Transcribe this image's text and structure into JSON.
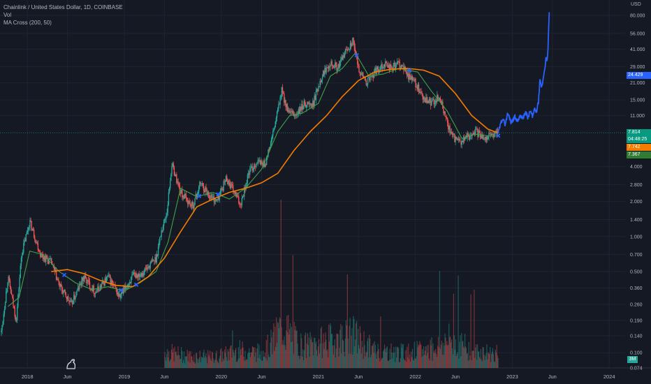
{
  "header": {
    "title": "Chainlink / United States Dollar, 1D, COINBASE",
    "vol_label": "Vol",
    "ma_label": "MA Cross (200, 50)"
  },
  "price_axis": {
    "currency": "USD",
    "ticks": [
      "80.000",
      "56.000",
      "41.000",
      "29.000",
      "21.000",
      "15.000",
      "11.000",
      "4.000",
      "2.800",
      "2.000",
      "1.400",
      "1.000",
      "0.700",
      "0.500",
      "0.360",
      "0.260",
      "0.190",
      "0.140",
      "0.100",
      "0.074"
    ],
    "tick_values": [
      80,
      56,
      41,
      29,
      21,
      15,
      11,
      4,
      2.8,
      2.0,
      1.4,
      1.0,
      0.7,
      0.5,
      0.36,
      0.26,
      0.19,
      0.14,
      0.1,
      0.074
    ]
  },
  "badges": {
    "projection": {
      "text": "24.429",
      "color": "#2962ff"
    },
    "last_price": {
      "text": "7.814",
      "color": "#089981"
    },
    "countdown": {
      "text": "04:48:25",
      "color": "#089981"
    },
    "ma200": {
      "text": "7.742",
      "color": "#f57c00"
    },
    "ma50": {
      "text": "7.367",
      "color": "#2e7d32"
    },
    "volume": {
      "text": "3M",
      "color": "#26a69a"
    }
  },
  "time_axis": {
    "labels": [
      "2018",
      "Jun",
      "2019",
      "Jun",
      "2020",
      "Jun",
      "2021",
      "Jun",
      "2022",
      "Jun",
      "2023",
      "Jun",
      "2024"
    ]
  },
  "chart_data": {
    "type": "line",
    "title": "Chainlink / United States Dollar, 1D, COINBASE",
    "yscale": "log",
    "ylim": [
      0.074,
      80
    ],
    "xlim": [
      "2017-09-20",
      "2024-03-01"
    ],
    "series": [
      {
        "name": "LINK/USD",
        "color": "#26a69a",
        "x": [
          "2017-09-25",
          "2017-10-20",
          "2017-11-20",
          "2017-12-10",
          "2018-01-10",
          "2018-02-20",
          "2018-04-01",
          "2018-05-01",
          "2018-06-15",
          "2018-08-01",
          "2018-09-15",
          "2018-11-01",
          "2018-12-15",
          "2019-02-01",
          "2019-03-15",
          "2019-05-01",
          "2019-05-20",
          "2019-06-10",
          "2019-06-29",
          "2019-08-01",
          "2019-09-15",
          "2019-10-15",
          "2019-11-15",
          "2019-12-15",
          "2020-01-20",
          "2020-03-13",
          "2020-04-15",
          "2020-05-15",
          "2020-06-15",
          "2020-07-15",
          "2020-08-16",
          "2020-09-10",
          "2020-10-10",
          "2020-11-10",
          "2020-12-10",
          "2021-01-10",
          "2021-02-01",
          "2021-02-15",
          "2021-03-15",
          "2021-04-15",
          "2021-05-10",
          "2021-06-01",
          "2021-07-01",
          "2021-08-01",
          "2021-08-20",
          "2021-09-10",
          "2021-10-01",
          "2021-11-01",
          "2021-12-01",
          "2022-01-01",
          "2022-02-01",
          "2022-03-01",
          "2022-04-01",
          "2022-05-15",
          "2022-06-18",
          "2022-07-15",
          "2022-08-15",
          "2022-09-15",
          "2022-10-15",
          "2022-11-09"
        ],
        "values": [
          0.15,
          0.45,
          0.19,
          0.7,
          1.35,
          0.7,
          0.6,
          0.38,
          0.26,
          0.45,
          0.33,
          0.45,
          0.3,
          0.45,
          0.5,
          0.65,
          1.1,
          1.6,
          4.2,
          2.4,
          1.8,
          2.9,
          2.3,
          2.0,
          3.2,
          1.9,
          3.6,
          4.4,
          4.2,
          7.8,
          18.0,
          11.5,
          11.0,
          14.0,
          13.5,
          23.0,
          29.0,
          32.0,
          28.0,
          40.0,
          48.0,
          28.0,
          21.0,
          26.0,
          29.0,
          31.0,
          28.0,
          31.0,
          25.0,
          21.0,
          15.0,
          14.0,
          16.0,
          7.5,
          6.3,
          7.2,
          8.0,
          7.2,
          7.5,
          7.814
        ]
      },
      {
        "name": "MA 50",
        "color": "#43a047",
        "x": [
          "2017-10-20",
          "2017-12-01",
          "2018-01-10",
          "2018-03-01",
          "2018-05-01",
          "2018-07-01",
          "2018-09-01",
          "2018-11-01",
          "2019-01-01",
          "2019-03-01",
          "2019-05-01",
          "2019-06-15",
          "2019-08-01",
          "2019-10-01",
          "2019-12-01",
          "2020-02-01",
          "2020-04-01",
          "2020-06-01",
          "2020-08-01",
          "2020-09-15",
          "2020-11-01",
          "2021-01-01",
          "2021-02-15",
          "2021-04-01",
          "2021-05-20",
          "2021-07-10",
          "2021-09-01",
          "2021-11-01",
          "2022-01-10",
          "2022-03-01",
          "2022-05-01",
          "2022-06-25",
          "2022-08-15",
          "2022-10-15",
          "2022-11-09"
        ],
        "values": [
          0.25,
          0.3,
          0.75,
          0.7,
          0.5,
          0.4,
          0.35,
          0.37,
          0.34,
          0.4,
          0.5,
          0.9,
          2.6,
          2.2,
          2.4,
          2.1,
          2.6,
          3.8,
          8.0,
          11.0,
          11.5,
          14.0,
          24.0,
          28.0,
          38.0,
          24.0,
          25.0,
          28.0,
          26.0,
          18.0,
          12.0,
          7.0,
          7.6,
          7.3,
          7.367
        ]
      },
      {
        "name": "MA 200",
        "color": "#f57c00",
        "x": [
          "2018-04-01",
          "2018-06-01",
          "2018-08-01",
          "2018-10-01",
          "2018-12-01",
          "2019-02-01",
          "2019-04-01",
          "2019-06-01",
          "2019-08-01",
          "2019-10-01",
          "2019-12-01",
          "2020-02-01",
          "2020-04-01",
          "2020-06-01",
          "2020-08-01",
          "2020-10-01",
          "2020-12-01",
          "2021-02-01",
          "2021-04-01",
          "2021-06-01",
          "2021-08-01",
          "2021-10-01",
          "2021-12-01",
          "2022-02-01",
          "2022-04-01",
          "2022-06-01",
          "2022-08-01",
          "2022-10-01",
          "2022-11-09"
        ],
        "values": [
          0.5,
          0.52,
          0.48,
          0.42,
          0.38,
          0.37,
          0.45,
          0.65,
          1.1,
          1.8,
          2.1,
          2.4,
          2.6,
          2.9,
          3.5,
          5.5,
          8.0,
          11.0,
          16.0,
          22.0,
          26.0,
          27.5,
          28.0,
          27.0,
          24.0,
          17.0,
          11.0,
          8.4,
          7.742
        ]
      },
      {
        "name": "Projection",
        "color": "#2962ff",
        "x": [
          "2022-11-09",
          "2022-11-25",
          "2022-12-05",
          "2022-12-15",
          "2022-12-28",
          "2023-01-10",
          "2023-01-20",
          "2023-02-01",
          "2023-02-10",
          "2023-02-20",
          "2023-03-01",
          "2023-03-10",
          "2023-03-18",
          "2023-03-25",
          "2023-04-01",
          "2023-04-10",
          "2023-04-15",
          "2023-04-22",
          "2023-05-01",
          "2023-05-08",
          "2023-05-12",
          "2023-05-16",
          "2023-05-20"
        ],
        "values": [
          7.8,
          10.5,
          9.2,
          11.5,
          9.6,
          10.8,
          9.8,
          11.2,
          10.2,
          11.8,
          10.4,
          12.0,
          10.8,
          12.5,
          11.6,
          14.5,
          22.0,
          19.0,
          26.0,
          34.0,
          31.0,
          45.0,
          85.0
        ]
      }
    ],
    "volume": {
      "color_up": "#26a69a",
      "color_down": "#ef5350",
      "x": [
        "2019-06-01",
        "2019-09-01",
        "2019-12-01",
        "2020-03-01",
        "2020-06-01",
        "2020-08-15",
        "2020-11-01",
        "2021-02-01",
        "2021-05-15",
        "2021-08-01",
        "2021-11-01",
        "2022-02-01",
        "2022-05-12",
        "2022-06-15",
        "2022-08-15",
        "2022-11-09"
      ],
      "values": [
        1.5,
        1.1,
        1.0,
        1.6,
        1.4,
        4.0,
        2.0,
        2.5,
        3.0,
        1.6,
        1.4,
        1.6,
        2.6,
        2.2,
        1.5,
        1.3
      ]
    }
  }
}
